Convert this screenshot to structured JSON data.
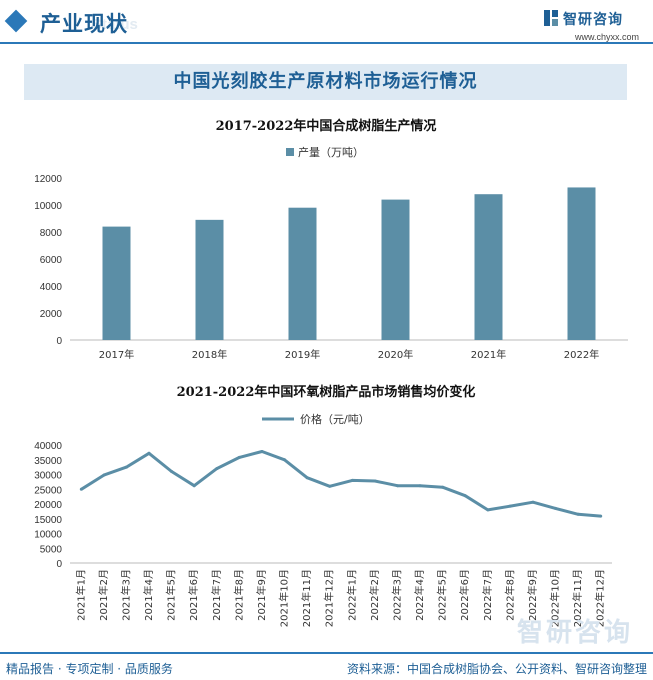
{
  "header": {
    "section_title": "产业现状",
    "ghost_text": "Status",
    "brand": "智研咨询",
    "site": "www.chyxx.com"
  },
  "banner": {
    "title": "中国光刻胶生产原材料市场运行情况"
  },
  "colors": {
    "accent": "#2b78b8",
    "bar": "#5b8ea6",
    "line": "#5b8ea6",
    "banner_bg": "#dde9f3"
  },
  "chart_data": [
    {
      "type": "bar",
      "title": "2017-2022年中国合成树脂生产情况",
      "categories": [
        "2017年",
        "2018年",
        "2019年",
        "2020年",
        "2021年",
        "2022年"
      ],
      "series": [
        {
          "name": "产量（万吨）",
          "values": [
            8400,
            8900,
            9800,
            10400,
            10800,
            11300
          ]
        }
      ],
      "yticks": [
        0,
        2000,
        4000,
        6000,
        8000,
        10000,
        12000
      ],
      "ylim": [
        0,
        12000
      ],
      "legend": "top-center",
      "grid": false
    },
    {
      "type": "line",
      "title": "2021-2022年中国环氧树脂产品市场销售均价变化",
      "categories": [
        "2021年1月",
        "2021年2月",
        "2021年3月",
        "2021年4月",
        "2021年5月",
        "2021年6月",
        "2021年7月",
        "2021年8月",
        "2021年9月",
        "2021年10月",
        "2021年11月",
        "2021年12月",
        "2022年1月",
        "2022年2月",
        "2022年3月",
        "2022年4月",
        "2022年5月",
        "2022年6月",
        "2022年7月",
        "2022年8月",
        "2022年9月",
        "2022年10月",
        "2022年11月",
        "2022年12月"
      ],
      "series": [
        {
          "name": "价格（元/吨）",
          "values": [
            25000,
            29800,
            32500,
            37200,
            31000,
            26200,
            32000,
            35800,
            37800,
            35000,
            28900,
            26000,
            28000,
            27800,
            26200,
            26200,
            25700,
            22800,
            18000,
            19300,
            20600,
            18500,
            16500,
            15900
          ]
        }
      ],
      "yticks": [
        0,
        5000,
        10000,
        15000,
        20000,
        25000,
        30000,
        35000,
        40000
      ],
      "ylim": [
        0,
        40000
      ],
      "legend": "top-center",
      "grid": false
    }
  ],
  "footer": {
    "left": "精品报告 · 专项定制 · 品质服务",
    "right": "资料来源：中国合成树脂协会、公开资料、智研咨询整理"
  },
  "watermark": "智研咨询"
}
